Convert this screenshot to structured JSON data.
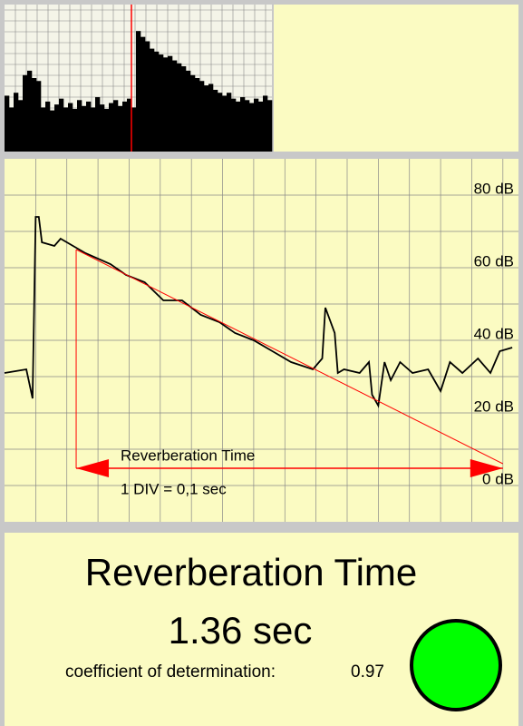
{
  "chart_data": [
    {
      "type": "bar",
      "color": "#000000",
      "marker_index": 28,
      "values": [
        38,
        30,
        40,
        35,
        52,
        55,
        50,
        48,
        30,
        34,
        28,
        32,
        36,
        30,
        33,
        29,
        35,
        31,
        34,
        30,
        37,
        32,
        29,
        33,
        35,
        31,
        34,
        36,
        30,
        82,
        78,
        75,
        70,
        68,
        66,
        64,
        65,
        62,
        60,
        58,
        55,
        52,
        50,
        48,
        45,
        46,
        42,
        40,
        38,
        40,
        36,
        34,
        37,
        35,
        33,
        36,
        34,
        38,
        35
      ],
      "ylim": [
        0,
        100
      ]
    },
    {
      "type": "line",
      "xlim": [
        0,
        1.65
      ],
      "ylim": [
        -10,
        90
      ],
      "yticks": [
        {
          "value": 80,
          "label": "80 dB"
        },
        {
          "value": 60,
          "label": "60 dB"
        },
        {
          "value": 40,
          "label": "40 dB"
        },
        {
          "value": 20,
          "label": "20 dB"
        },
        {
          "value": 0,
          "label": "0 dB"
        }
      ],
      "ygrid": [
        0,
        10,
        20,
        30,
        40,
        50,
        60,
        70,
        80
      ],
      "xgrid": [
        0.1,
        0.2,
        0.3,
        0.4,
        0.5,
        0.6,
        0.7,
        0.8,
        0.9,
        1.0,
        1.1,
        1.2,
        1.3,
        1.4,
        1.5,
        1.6
      ],
      "x": [
        0,
        0.07,
        0.09,
        0.1,
        0.11,
        0.12,
        0.16,
        0.18,
        0.22,
        0.26,
        0.34,
        0.39,
        0.45,
        0.51,
        0.57,
        0.63,
        0.69,
        0.74,
        0.8,
        0.86,
        0.92,
        0.99,
        1.02,
        1.03,
        1.06,
        1.07,
        1.09,
        1.14,
        1.17,
        1.18,
        1.2,
        1.22,
        1.24,
        1.27,
        1.31,
        1.36,
        1.4,
        1.43,
        1.47,
        1.52,
        1.56,
        1.59,
        1.63
      ],
      "series": [
        {
          "color": "#000000",
          "values": [
            31,
            32,
            24,
            74,
            74,
            67,
            66,
            68,
            66,
            64,
            61,
            58,
            56,
            51,
            51,
            47,
            45,
            42,
            40,
            37,
            34,
            32,
            35,
            49,
            42,
            31,
            32,
            31,
            34,
            25,
            22,
            34,
            29,
            34,
            31,
            32,
            26,
            34,
            31,
            35,
            31,
            37,
            38
          ]
        }
      ],
      "regression": {
        "color": "#ff0000",
        "x": [
          0.23,
          1.6
        ],
        "values": [
          65,
          6
        ]
      },
      "annotations": [
        "Reverberation Time",
        "1 DIV = 0,1 sec"
      ]
    }
  ],
  "summary": {
    "title": "Reverberation Time",
    "value": "1.36 sec",
    "coef_label": "coefficient of determination:",
    "coef": 0.97
  }
}
